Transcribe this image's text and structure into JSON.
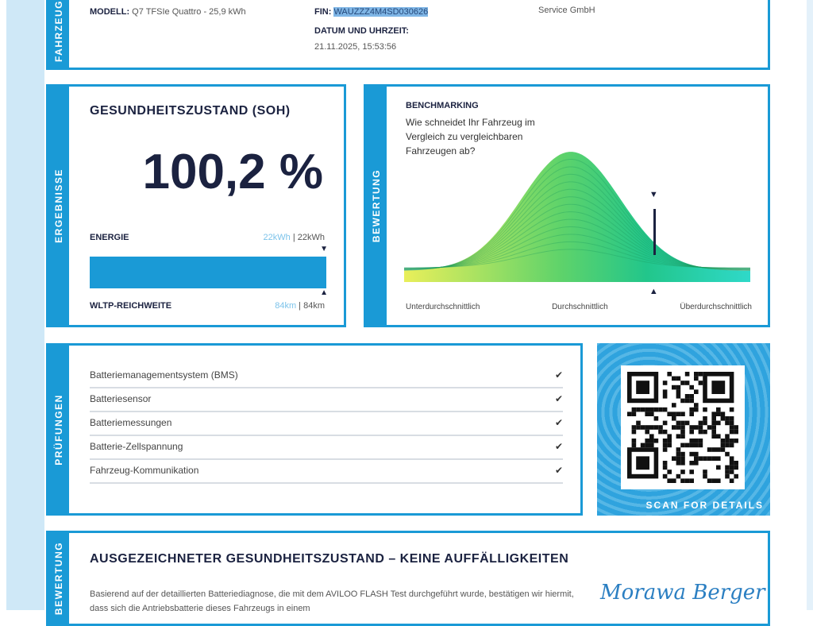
{
  "vehicle": {
    "tab": "FAHRZEUG",
    "model_label": "MODELL:",
    "model_value": "Q7 TFSIe Quattro - 25,9 kWh",
    "fin_label": "FIN:",
    "fin_value": "WAUZZZ4M4SD030626",
    "date_label": "DATUM UND UHRZEIT:",
    "date_value": "21.11.2025, 15:53:56",
    "company": "Service GmbH"
  },
  "results": {
    "tab": "ERGEBNISSE",
    "title": "GESUNDHEITSZUSTAND (SOH)",
    "soh": "100,2 %",
    "energy_label": "ENERGIE",
    "energy_current": "22kWh",
    "energy_sep": " | ",
    "energy_nominal": "22kWh",
    "range_label": "WLTP-REICHWEITE",
    "range_current": "84km",
    "range_nominal": "84km",
    "energy_fill_percent": 100
  },
  "rating": {
    "tab": "BEWERTUNG",
    "title": "BENCHMARKING",
    "question": "Wie schneidet Ihr Fahrzeug im Vergleich zu vergleichbaren Fahrzeugen ab?",
    "axis": [
      "Unterdurchschnittlich",
      "Durchschnittlich",
      "Überdurchschnittlich"
    ],
    "marker_position_percent": 72
  },
  "checks": {
    "tab": "PRÜFUNGEN",
    "items": [
      "Batteriemanagementsystem (BMS)",
      "Batteriesensor",
      "Batteriemessungen",
      "Batterie-Zellspannung",
      "Fahrzeug-Kommunikation"
    ],
    "icon": "checkmark-icon"
  },
  "qr": {
    "caption": "SCAN FOR DETAILS"
  },
  "verdict": {
    "tab": "BEWERTUNG",
    "title": "AUSGEZEICHNETER GESUNDHEITSZUSTAND – KEINE AUFFÄLLIGKEITEN",
    "text": "Basierend auf der detaillierten Batteriediagnose, die mit dem AVILOO FLASH Test durchgeführt wurde, bestätigen wir hiermit, dass sich die Antriebsbatterie dieses Fahrzeugs in einem",
    "signature": "Morawa Berger"
  },
  "colors": {
    "accent": "#1a9ad6",
    "dark": "#1b2240"
  }
}
